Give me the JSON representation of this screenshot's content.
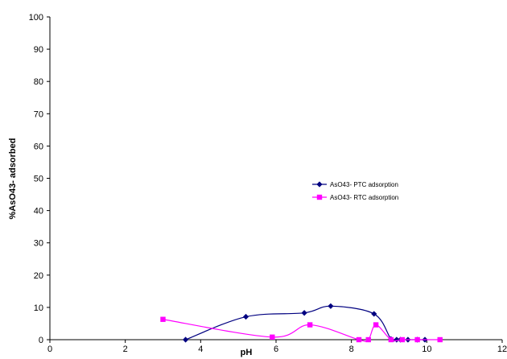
{
  "chart_data": {
    "type": "line",
    "title": "",
    "xlabel": "pH",
    "ylabel": "%AsO43- adsorbed",
    "xlim": [
      0,
      12
    ],
    "ylim": [
      0,
      100
    ],
    "xticks": [
      0,
      2,
      4,
      6,
      8,
      10,
      12
    ],
    "yticks": [
      0,
      10,
      20,
      30,
      40,
      50,
      60,
      70,
      80,
      90,
      100
    ],
    "grid": false,
    "legend_position": "center-right",
    "smooth": true,
    "series": [
      {
        "name": "AsO43- PTC adsorption",
        "color": "#000080",
        "marker": "diamond",
        "x": [
          3.6,
          5.2,
          6.75,
          7.45,
          8.6,
          9.05,
          9.2,
          9.3,
          9.5,
          9.75,
          9.95
        ],
        "y": [
          0,
          7.1,
          8.3,
          10.4,
          8.0,
          0.2,
          0,
          0,
          0,
          0,
          0
        ]
      },
      {
        "name": "AsO43- RTC adsorption",
        "color": "#FF00FF",
        "marker": "square",
        "x": [
          3.0,
          5.9,
          6.9,
          8.2,
          8.45,
          8.65,
          9.05,
          9.35,
          9.75,
          10.35
        ],
        "y": [
          6.3,
          0.8,
          4.6,
          0,
          0,
          4.6,
          0,
          0,
          0,
          0
        ]
      }
    ]
  }
}
